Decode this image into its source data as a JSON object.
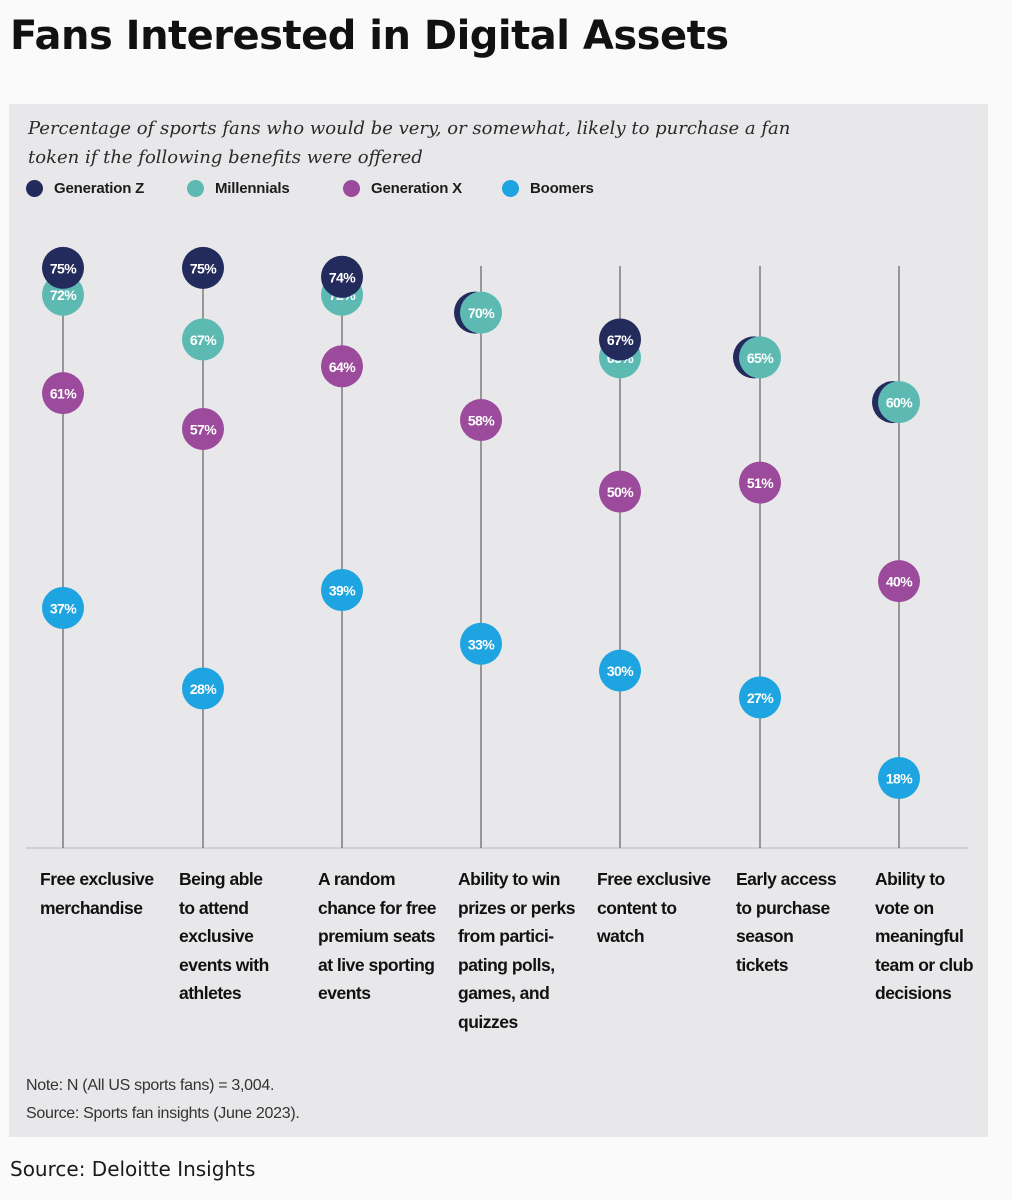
{
  "page": {
    "title": "Fans Interested in Digital Assets",
    "source": "Source: Deloitte Insights"
  },
  "chart_data": {
    "type": "dot-plot",
    "subtitle": "Percentage of sports fans who would be very, or somewhat, likely to purchase a fan token if the following benefits were offered",
    "categories": [
      "Free exclusive merchandise",
      "Being able to attend exclusive events with athletes",
      "A random chance for free premium seats at live sporting events",
      "Ability to win prizes or perks from participating polls, games, and quizzes",
      "Free exclusive content to watch",
      "Early access to purchase season tickets",
      "Ability to vote on meaningful team or club decisions"
    ],
    "category_labels": [
      "Free exclusive\nmerchandise",
      "Being able\nto attend\nexclusive\nevents with\nathletes",
      "A random\nchance for free\npremium seats\nat live sporting\nevents",
      "Ability to win\nprizes or perks\nfrom partici-\npating polls,\ngames, and\nquizzes",
      "Free exclusive\ncontent to\nwatch",
      "Early access\nto purchase\nseason\ntickets",
      "Ability to\nvote on\nmeaningful\nteam or club\ndecisions"
    ],
    "series": [
      {
        "name": "Generation Z",
        "color": "#232a5c",
        "values": [
          75,
          75,
          74,
          70,
          67,
          65,
          60
        ]
      },
      {
        "name": "Millennials",
        "color": "#5dbab3",
        "values": [
          72,
          67,
          72,
          70,
          65,
          65,
          60
        ]
      },
      {
        "name": "Generation X",
        "color": "#9c4a9c",
        "values": [
          61,
          57,
          64,
          58,
          50,
          51,
          40
        ]
      },
      {
        "name": "Boomers",
        "color": "#1ea4e0",
        "values": [
          37,
          28,
          39,
          33,
          30,
          27,
          18
        ]
      }
    ],
    "value_suffix": "%",
    "ylim": [
      0,
      100
    ],
    "note": "Note: N (All US sports fans) = 3,004.",
    "source_note": "Source: Sports fan insights (June 2023)."
  }
}
